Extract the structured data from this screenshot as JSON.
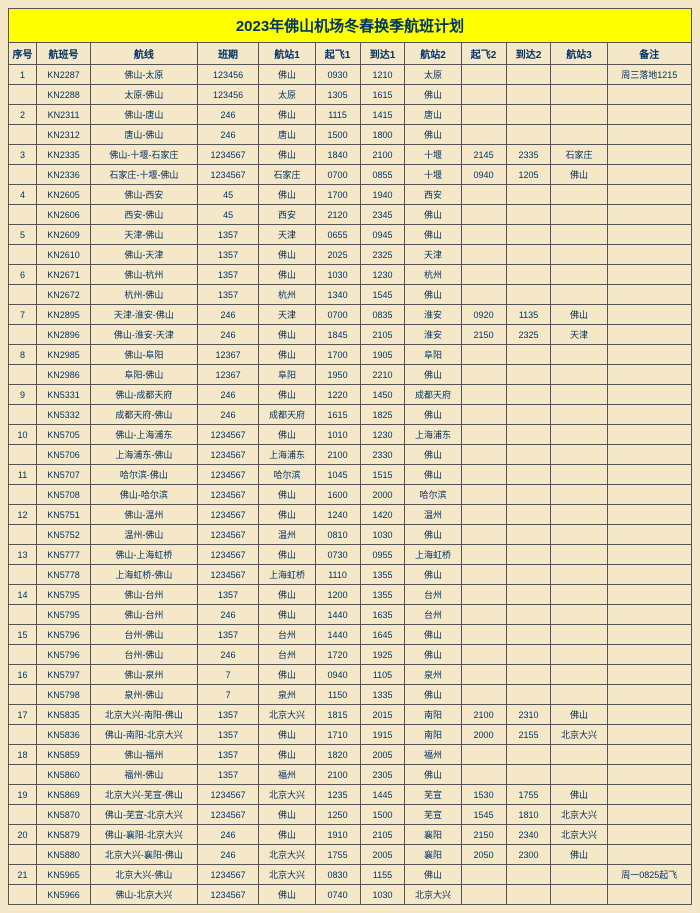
{
  "title": "2023年佛山机场冬春换季航班计划",
  "columns": [
    "序号",
    "航班号",
    "航线",
    "班期",
    "航站1",
    "起飞1",
    "到达1",
    "航站2",
    "起飞2",
    "到达2",
    "航站3",
    "备注"
  ],
  "col_classes": [
    "c-idx",
    "c-fno",
    "c-route",
    "c-days",
    "c-st",
    "c-t",
    "c-a",
    "c-st",
    "c-t",
    "c-a",
    "c-st",
    "c-note"
  ],
  "rows": [
    [
      "1",
      "KN2287",
      "佛山-太原",
      "123456",
      "佛山",
      "0930",
      "1210",
      "太原",
      "",
      "",
      "",
      "周三落地1215"
    ],
    [
      "",
      "KN2288",
      "太原-佛山",
      "123456",
      "太原",
      "1305",
      "1615",
      "佛山",
      "",
      "",
      "",
      ""
    ],
    [
      "2",
      "KN2311",
      "佛山-唐山",
      "246",
      "佛山",
      "1115",
      "1415",
      "唐山",
      "",
      "",
      "",
      ""
    ],
    [
      "",
      "KN2312",
      "唐山-佛山",
      "246",
      "唐山",
      "1500",
      "1800",
      "佛山",
      "",
      "",
      "",
      ""
    ],
    [
      "3",
      "KN2335",
      "佛山-十堰-石家庄",
      "1234567",
      "佛山",
      "1840",
      "2100",
      "十堰",
      "2145",
      "2335",
      "石家庄",
      ""
    ],
    [
      "",
      "KN2336",
      "石家庄-十堰-佛山",
      "1234567",
      "石家庄",
      "0700",
      "0855",
      "十堰",
      "0940",
      "1205",
      "佛山",
      ""
    ],
    [
      "4",
      "KN2605",
      "佛山-西安",
      "45",
      "佛山",
      "1700",
      "1940",
      "西安",
      "",
      "",
      "",
      ""
    ],
    [
      "",
      "KN2606",
      "西安-佛山",
      "45",
      "西安",
      "2120",
      "2345",
      "佛山",
      "",
      "",
      "",
      ""
    ],
    [
      "5",
      "KN2609",
      "天津-佛山",
      "1357",
      "天津",
      "0655",
      "0945",
      "佛山",
      "",
      "",
      "",
      ""
    ],
    [
      "",
      "KN2610",
      "佛山-天津",
      "1357",
      "佛山",
      "2025",
      "2325",
      "天津",
      "",
      "",
      "",
      ""
    ],
    [
      "6",
      "KN2671",
      "佛山-杭州",
      "1357",
      "佛山",
      "1030",
      "1230",
      "杭州",
      "",
      "",
      "",
      ""
    ],
    [
      "",
      "KN2672",
      "杭州-佛山",
      "1357",
      "杭州",
      "1340",
      "1545",
      "佛山",
      "",
      "",
      "",
      ""
    ],
    [
      "7",
      "KN2895",
      "天津-淮安-佛山",
      "246",
      "天津",
      "0700",
      "0835",
      "淮安",
      "0920",
      "1135",
      "佛山",
      ""
    ],
    [
      "",
      "KN2896",
      "佛山-淮安-天津",
      "246",
      "佛山",
      "1845",
      "2105",
      "淮安",
      "2150",
      "2325",
      "天津",
      ""
    ],
    [
      "8",
      "KN2985",
      "佛山-阜阳",
      "12367",
      "佛山",
      "1700",
      "1905",
      "阜阳",
      "",
      "",
      "",
      ""
    ],
    [
      "",
      "KN2986",
      "阜阳-佛山",
      "12367",
      "阜阳",
      "1950",
      "2210",
      "佛山",
      "",
      "",
      "",
      ""
    ],
    [
      "9",
      "KN5331",
      "佛山-成都天府",
      "246",
      "佛山",
      "1220",
      "1450",
      "成都天府",
      "",
      "",
      "",
      ""
    ],
    [
      "",
      "KN5332",
      "成都天府-佛山",
      "246",
      "成都天府",
      "1615",
      "1825",
      "佛山",
      "",
      "",
      "",
      ""
    ],
    [
      "10",
      "KN5705",
      "佛山-上海浦东",
      "1234567",
      "佛山",
      "1010",
      "1230",
      "上海浦东",
      "",
      "",
      "",
      ""
    ],
    [
      "",
      "KN5706",
      "上海浦东-佛山",
      "1234567",
      "上海浦东",
      "2100",
      "2330",
      "佛山",
      "",
      "",
      "",
      ""
    ],
    [
      "11",
      "KN5707",
      "哈尔滨-佛山",
      "1234567",
      "哈尔滨",
      "1045",
      "1515",
      "佛山",
      "",
      "",
      "",
      ""
    ],
    [
      "",
      "KN5708",
      "佛山-哈尔滨",
      "1234567",
      "佛山",
      "1600",
      "2000",
      "哈尔滨",
      "",
      "",
      "",
      ""
    ],
    [
      "12",
      "KN5751",
      "佛山-温州",
      "1234567",
      "佛山",
      "1240",
      "1420",
      "温州",
      "",
      "",
      "",
      ""
    ],
    [
      "",
      "KN5752",
      "温州-佛山",
      "1234567",
      "温州",
      "0810",
      "1030",
      "佛山",
      "",
      "",
      "",
      ""
    ],
    [
      "13",
      "KN5777",
      "佛山-上海虹桥",
      "1234567",
      "佛山",
      "0730",
      "0955",
      "上海虹桥",
      "",
      "",
      "",
      ""
    ],
    [
      "",
      "KN5778",
      "上海虹桥-佛山",
      "1234567",
      "上海虹桥",
      "1110",
      "1355",
      "佛山",
      "",
      "",
      "",
      ""
    ],
    [
      "14",
      "KN5795",
      "佛山-台州",
      "1357",
      "佛山",
      "1200",
      "1355",
      "台州",
      "",
      "",
      "",
      ""
    ],
    [
      "",
      "KN5795",
      "佛山-台州",
      "246",
      "佛山",
      "1440",
      "1635",
      "台州",
      "",
      "",
      "",
      ""
    ],
    [
      "15",
      "KN5796",
      "台州-佛山",
      "1357",
      "台州",
      "1440",
      "1645",
      "佛山",
      "",
      "",
      "",
      ""
    ],
    [
      "",
      "KN5796",
      "台州-佛山",
      "246",
      "台州",
      "1720",
      "1925",
      "佛山",
      "",
      "",
      "",
      ""
    ],
    [
      "16",
      "KN5797",
      "佛山-泉州",
      "7",
      "佛山",
      "0940",
      "1105",
      "泉州",
      "",
      "",
      "",
      ""
    ],
    [
      "",
      "KN5798",
      "泉州-佛山",
      "7",
      "泉州",
      "1150",
      "1335",
      "佛山",
      "",
      "",
      "",
      ""
    ],
    [
      "17",
      "KN5835",
      "北京大兴-南阳-佛山",
      "1357",
      "北京大兴",
      "1815",
      "2015",
      "南阳",
      "2100",
      "2310",
      "佛山",
      ""
    ],
    [
      "",
      "KN5836",
      "佛山-南阳-北京大兴",
      "1357",
      "佛山",
      "1710",
      "1915",
      "南阳",
      "2000",
      "2155",
      "北京大兴",
      ""
    ],
    [
      "18",
      "KN5859",
      "佛山-福州",
      "1357",
      "佛山",
      "1820",
      "2005",
      "福州",
      "",
      "",
      "",
      ""
    ],
    [
      "",
      "KN5860",
      "福州-佛山",
      "1357",
      "福州",
      "2100",
      "2305",
      "佛山",
      "",
      "",
      "",
      ""
    ],
    [
      "19",
      "KN5869",
      "北京大兴-芜宣-佛山",
      "1234567",
      "北京大兴",
      "1235",
      "1445",
      "芜宣",
      "1530",
      "1755",
      "佛山",
      ""
    ],
    [
      "",
      "KN5870",
      "佛山-芜宣-北京大兴",
      "1234567",
      "佛山",
      "1250",
      "1500",
      "芜宣",
      "1545",
      "1810",
      "北京大兴",
      ""
    ],
    [
      "20",
      "KN5879",
      "佛山-襄阳-北京大兴",
      "246",
      "佛山",
      "1910",
      "2105",
      "襄阳",
      "2150",
      "2340",
      "北京大兴",
      ""
    ],
    [
      "",
      "KN5880",
      "北京大兴-襄阳-佛山",
      "246",
      "北京大兴",
      "1755",
      "2005",
      "襄阳",
      "2050",
      "2300",
      "佛山",
      ""
    ],
    [
      "21",
      "KN5965",
      "北京大兴-佛山",
      "1234567",
      "北京大兴",
      "0830",
      "1155",
      "佛山",
      "",
      "",
      "",
      "周一0825起飞"
    ],
    [
      "",
      "KN5966",
      "佛山-北京大兴",
      "1234567",
      "佛山",
      "0740",
      "1030",
      "北京大兴",
      "",
      "",
      "",
      ""
    ]
  ]
}
